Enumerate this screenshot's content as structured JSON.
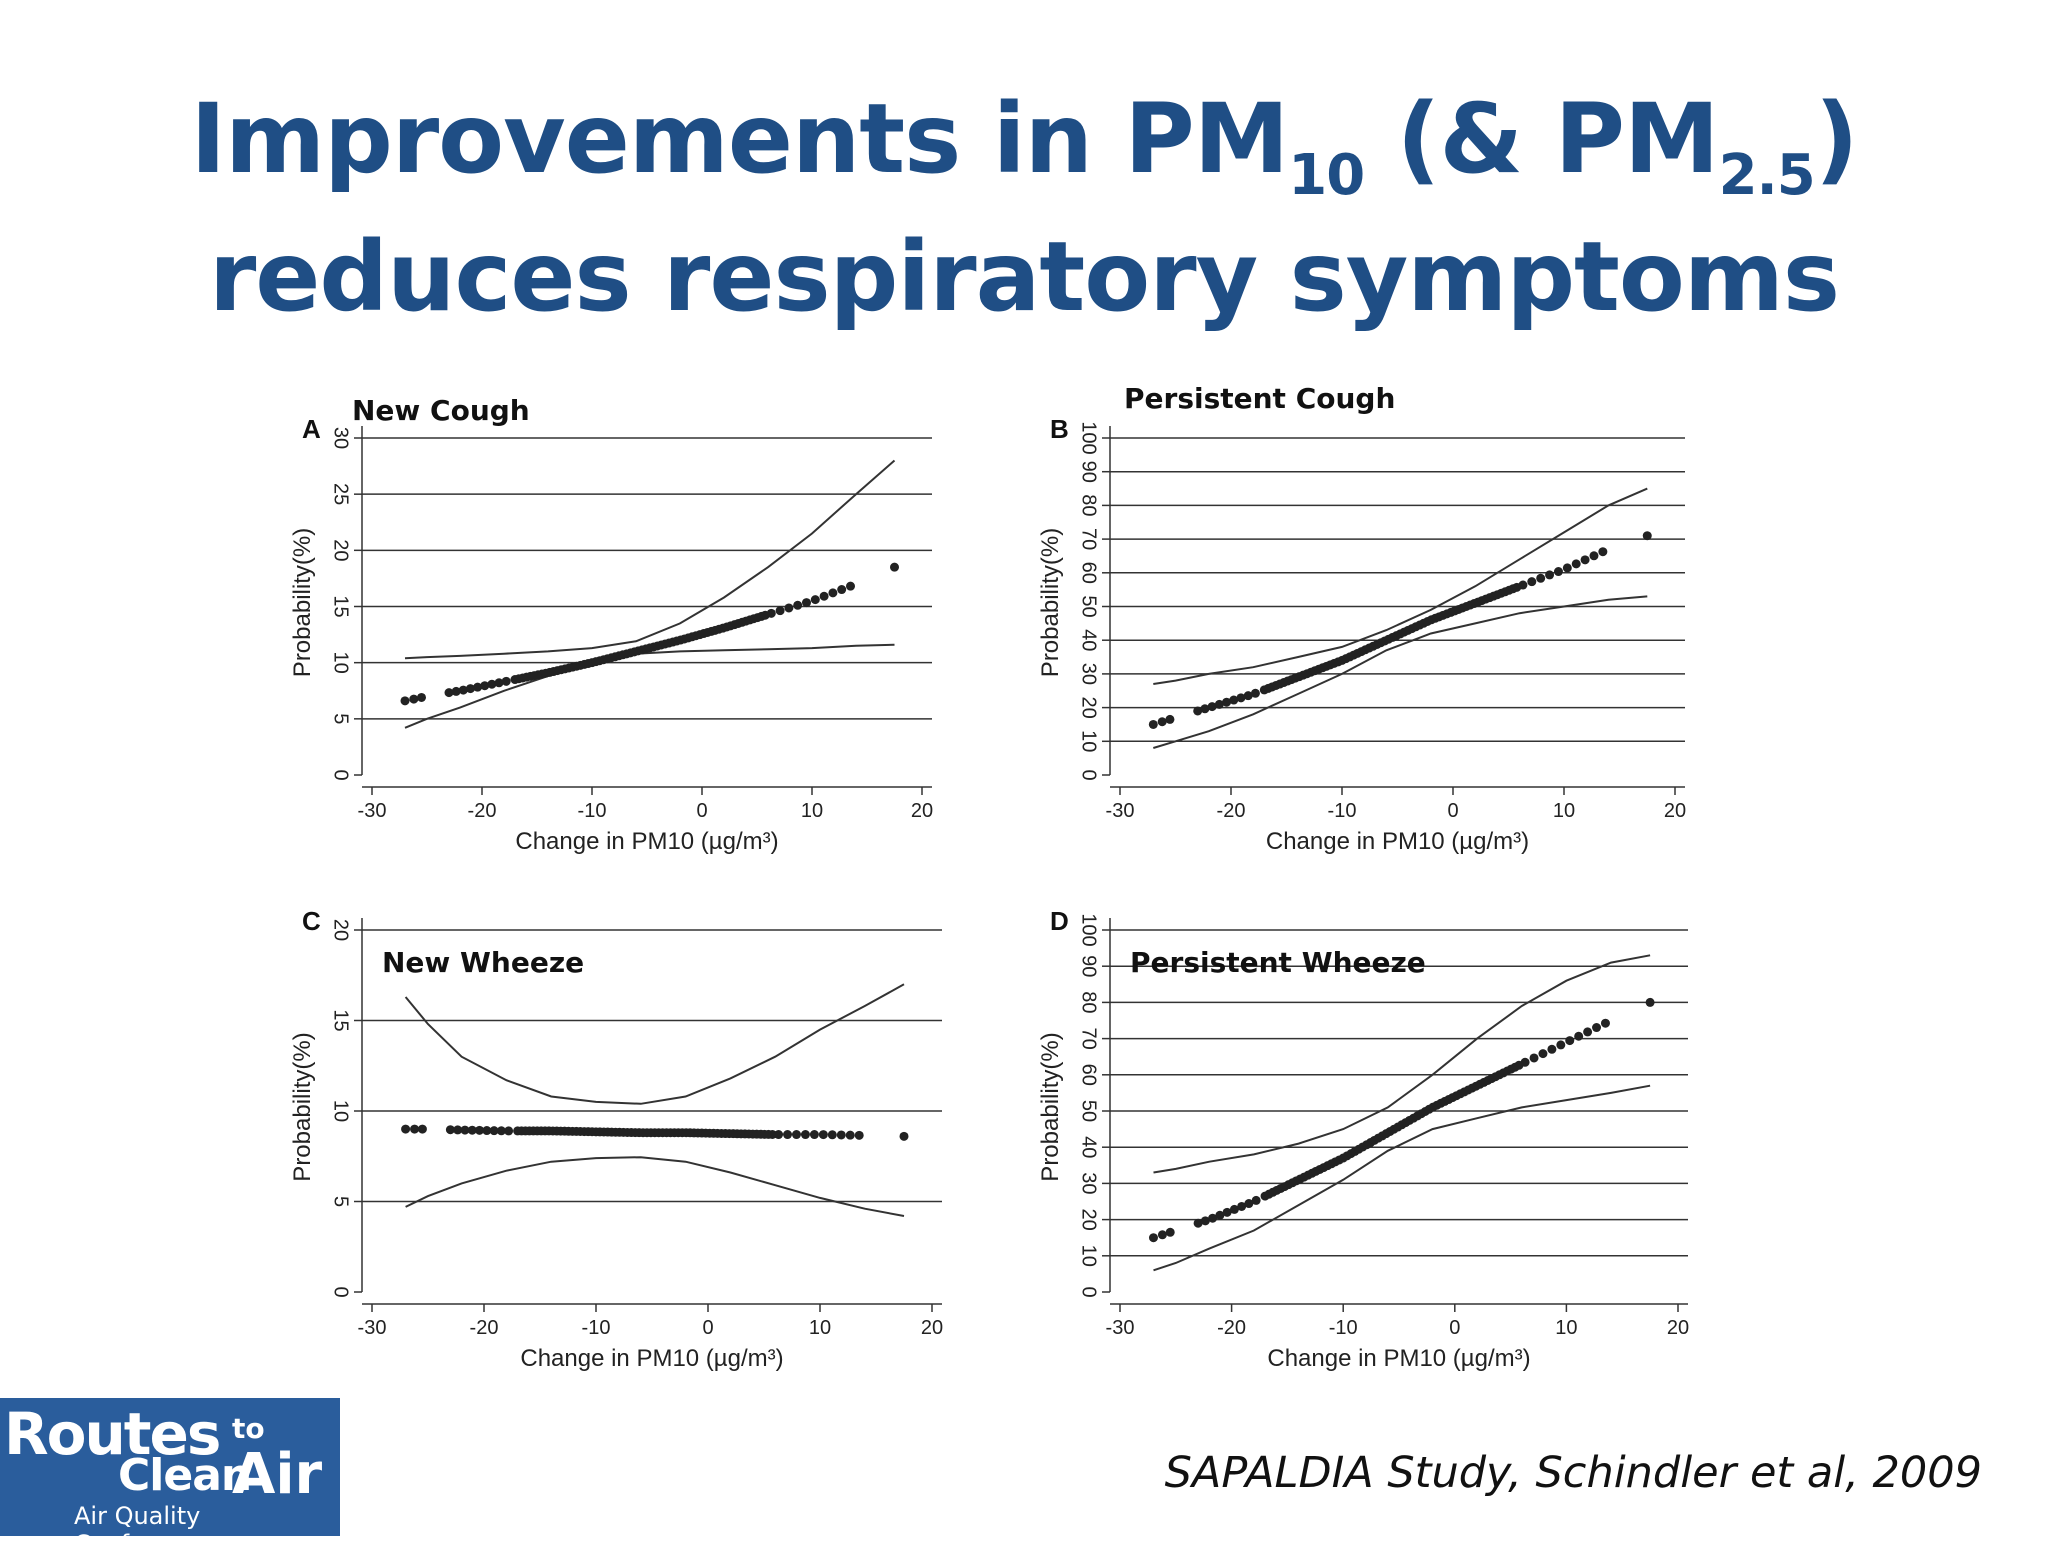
{
  "slide": {
    "title_part1": "Improvements in PM",
    "title_sub1": "10",
    "title_part2": " (& PM",
    "title_sub2": "2.5",
    "title_part3": ")",
    "title_line2": "reduces respiratory symptoms",
    "citation": "SAPALDIA Study, Schindler et al, 2009"
  },
  "logo": {
    "line1": "Routes",
    "to": "to",
    "line2a": "Clean",
    "line2b": "Air",
    "line3": "Air Quality Conference",
    "colors": {
      "background": "#2a5d9c",
      "text": "#ffffff"
    }
  },
  "colors": {
    "title": "#1f4e85",
    "data": "#222222"
  },
  "chart_data": [
    {
      "type": "scatter",
      "panel": "A",
      "title": "New Cough",
      "xlabel": "Change in PM10 (µg/m³)",
      "ylabel": "Probability(%)",
      "xlim": [
        -30,
        20
      ],
      "ylim": [
        0,
        30
      ],
      "xticks": [
        -30,
        -20,
        -10,
        0,
        10,
        20
      ],
      "yticks": [
        0,
        5,
        10,
        15,
        20,
        25,
        30
      ],
      "grid": true,
      "x": [
        -27,
        -25,
        -22,
        -18,
        -14,
        -10,
        -6,
        -2,
        2,
        6,
        10,
        14,
        17.5
      ],
      "y": [
        6.6,
        7.0,
        7.5,
        8.3,
        9.1,
        10.0,
        11.0,
        12.0,
        13.1,
        14.3,
        15.5,
        17.0,
        18.5
      ],
      "ci_lower": [
        4.2,
        5.0,
        6.0,
        7.5,
        8.8,
        10.0,
        10.8,
        11.0,
        11.1,
        11.2,
        11.3,
        11.5,
        11.6
      ],
      "ci_upper": [
        10.4,
        10.5,
        10.6,
        10.8,
        11.0,
        11.3,
        11.9,
        13.5,
        15.8,
        18.5,
        21.5,
        25.0,
        28.0
      ]
    },
    {
      "type": "scatter",
      "panel": "B",
      "title": "Persistent Cough",
      "xlabel": "Change in PM10 (µg/m³)",
      "ylabel": "Probability(%)",
      "xlim": [
        -30,
        20
      ],
      "ylim": [
        0,
        100
      ],
      "xticks": [
        -30,
        -20,
        -10,
        0,
        10,
        20
      ],
      "yticks": [
        0,
        10,
        20,
        30,
        40,
        50,
        60,
        70,
        80,
        90,
        100
      ],
      "grid": true,
      "x": [
        -27,
        -25,
        -22,
        -18,
        -14,
        -10,
        -6,
        -2,
        2,
        6,
        10,
        14,
        17.5
      ],
      "y": [
        15,
        17,
        20,
        24,
        29,
        34,
        40,
        46,
        51,
        56,
        61,
        67,
        71
      ],
      "ci_lower": [
        8,
        10,
        13,
        18,
        24,
        30,
        37,
        42,
        45,
        48,
        50,
        52,
        53
      ],
      "ci_upper": [
        27,
        28,
        30,
        32,
        35,
        38,
        43,
        49,
        56,
        64,
        72,
        80,
        85
      ]
    },
    {
      "type": "scatter",
      "panel": "C",
      "title": "New Wheeze",
      "xlabel": "Change in PM10 (µg/m³)",
      "ylabel": "Probability(%)",
      "xlim": [
        -30,
        20
      ],
      "ylim": [
        0,
        20
      ],
      "xticks": [
        -30,
        -20,
        -10,
        0,
        10,
        20
      ],
      "yticks": [
        0,
        5,
        10,
        15,
        20
      ],
      "grid": true,
      "x": [
        -27,
        -25,
        -22,
        -18,
        -14,
        -10,
        -6,
        -2,
        2,
        6,
        10,
        14,
        17.5
      ],
      "y": [
        9.0,
        9.0,
        8.95,
        8.9,
        8.9,
        8.85,
        8.8,
        8.8,
        8.75,
        8.7,
        8.7,
        8.65,
        8.6
      ],
      "ci_lower": [
        4.7,
        5.3,
        6.0,
        6.7,
        7.2,
        7.4,
        7.45,
        7.2,
        6.6,
        5.9,
        5.2,
        4.6,
        4.2
      ],
      "ci_upper": [
        16.3,
        14.8,
        13.0,
        11.7,
        10.8,
        10.5,
        10.4,
        10.8,
        11.8,
        13.0,
        14.5,
        15.8,
        17.0
      ]
    },
    {
      "type": "scatter",
      "panel": "D",
      "title": "Persistent Wheeze",
      "xlabel": "Change in PM10 (µg/m³)",
      "ylabel": "Probability(%)",
      "xlim": [
        -30,
        20
      ],
      "ylim": [
        0,
        100
      ],
      "xticks": [
        -30,
        -20,
        -10,
        0,
        10,
        20
      ],
      "yticks": [
        0,
        10,
        20,
        30,
        40,
        50,
        60,
        70,
        80,
        90,
        100
      ],
      "grid": true,
      "x": [
        -27,
        -25,
        -22,
        -18,
        -14,
        -10,
        -6,
        -2,
        2,
        6,
        10,
        14,
        17.5
      ],
      "y": [
        15,
        17,
        20,
        25,
        31,
        37,
        44,
        51,
        57,
        63,
        69,
        75,
        80
      ],
      "ci_lower": [
        6,
        8,
        12,
        17,
        24,
        31,
        39,
        45,
        48,
        51,
        53,
        55,
        57
      ],
      "ci_upper": [
        33,
        34,
        36,
        38,
        41,
        45,
        51,
        60,
        70,
        79,
        86,
        91,
        93
      ]
    }
  ]
}
